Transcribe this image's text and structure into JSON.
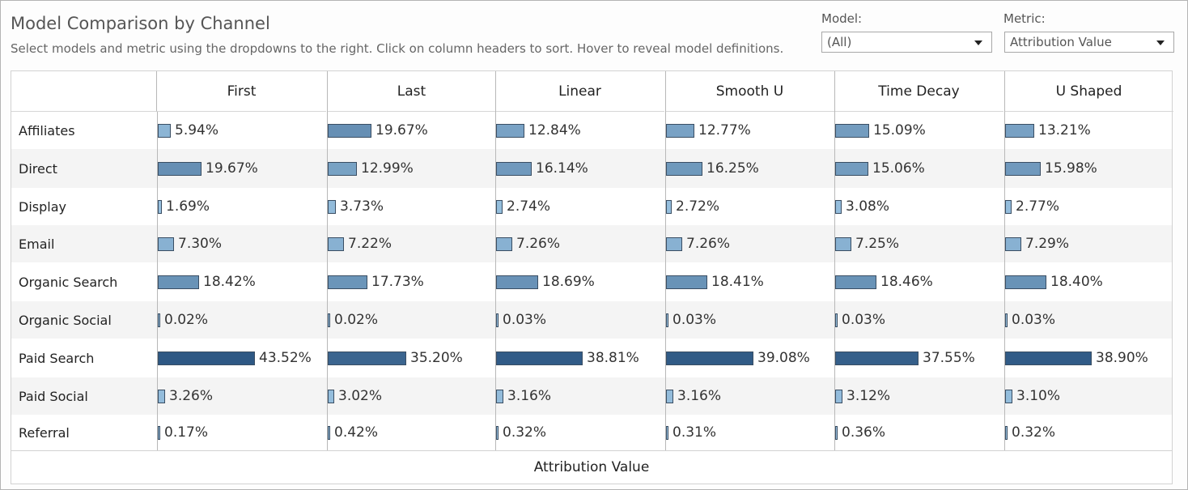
{
  "header": {
    "title": "Model Comparison by Channel",
    "subtitle": "Select models and metric using the dropdowns to the right. Click on column headers to sort. Hover to reveal model definitions."
  },
  "filters": {
    "model": {
      "label": "Model:",
      "value": "(All)"
    },
    "metric": {
      "label": "Metric:",
      "value": "Attribution Value"
    }
  },
  "colors": {
    "bar_light": "#9cc5e3",
    "bar_dark": "#2e5884",
    "row_alt": "#f4f4f4",
    "row_base": "#ffffff"
  },
  "icons": {
    "dropdown": "chevron-down-icon"
  },
  "chart_data": {
    "type": "bar",
    "orientation": "horizontal",
    "layout": "small-multiples table",
    "footer_label": "Attribution Value",
    "value_suffix": "%",
    "categories": [
      "Affiliates",
      "Direct",
      "Display",
      "Email",
      "Organic Search",
      "Organic Social",
      "Paid Search",
      "Paid Social",
      "Referral"
    ],
    "series": [
      {
        "name": "First",
        "values": [
          5.94,
          19.67,
          1.69,
          7.3,
          18.42,
          0.02,
          43.52,
          3.26,
          0.17
        ],
        "labels": [
          "5.94%",
          "19.67%",
          "1.69%",
          "7.30%",
          "18.42%",
          "0.02%",
          "43.52%",
          "3.26%",
          "0.17%"
        ]
      },
      {
        "name": "Last",
        "values": [
          19.67,
          12.99,
          3.73,
          7.22,
          17.73,
          0.02,
          35.2,
          3.02,
          0.42
        ],
        "labels": [
          "19.67%",
          "12.99%",
          "3.73%",
          "7.22%",
          "17.73%",
          "0.02%",
          "35.20%",
          "3.02%",
          "0.42%"
        ]
      },
      {
        "name": "Linear",
        "values": [
          12.84,
          16.14,
          2.74,
          7.26,
          18.69,
          0.03,
          38.81,
          3.16,
          0.32
        ],
        "labels": [
          "12.84%",
          "16.14%",
          "2.74%",
          "7.26%",
          "18.69%",
          "0.03%",
          "38.81%",
          "3.16%",
          "0.32%"
        ]
      },
      {
        "name": "Smooth U",
        "values": [
          12.77,
          16.25,
          2.72,
          7.26,
          18.41,
          0.03,
          39.08,
          3.16,
          0.31
        ],
        "labels": [
          "12.77%",
          "16.25%",
          "2.72%",
          "7.26%",
          "18.41%",
          "0.03%",
          "39.08%",
          "3.16%",
          "0.31%"
        ]
      },
      {
        "name": "Time Decay",
        "values": [
          15.09,
          15.06,
          3.08,
          7.25,
          18.46,
          0.03,
          37.55,
          3.12,
          0.36
        ],
        "labels": [
          "15.09%",
          "15.06%",
          "3.08%",
          "7.25%",
          "18.46%",
          "0.03%",
          "37.55%",
          "3.12%",
          "0.36%"
        ]
      },
      {
        "name": "U Shaped",
        "values": [
          13.21,
          15.98,
          2.77,
          7.29,
          18.4,
          0.03,
          38.9,
          3.1,
          0.32
        ],
        "labels": [
          "13.21%",
          "15.98%",
          "2.77%",
          "7.29%",
          "18.40%",
          "0.03%",
          "38.90%",
          "3.10%",
          "0.32%"
        ]
      }
    ],
    "xlim": [
      0,
      45
    ],
    "grid": false,
    "legend": "none"
  }
}
